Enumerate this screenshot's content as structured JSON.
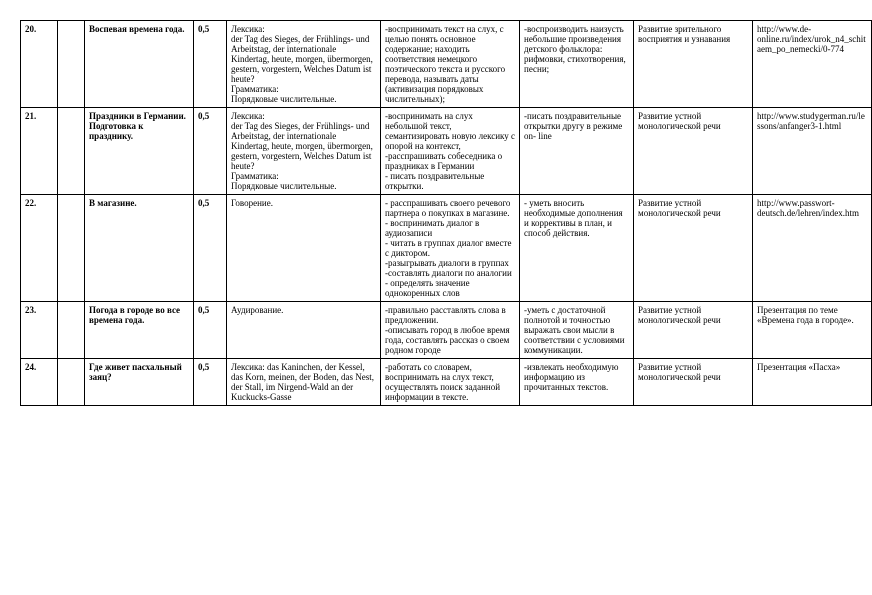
{
  "rows": [
    {
      "num": "20.",
      "topic": "Воспевая времена года.",
      "hours": "0,5",
      "lex": "Лексика:\nder Tag des Sieges, der Frühlings- und Arbeitstag, der internationale Kindertag, heute, morgen, übermorgen, gestern, vorgestern, Welches Datum ist heute?\nГрамматика:\nПорядковые числительные.",
      "act1": "-воспринимать текст на слух, с целью понять основное содержание; находить соответствия немецкого поэтического текста и русского перевода, называть даты (активизация порядковых числительных);",
      "act2": "-воспроизводить наизусть небольшие произведения детского фольклора: рифмовки, стихотворения, песни;",
      "dev": "Развитие  зрительного восприятия и узнавания",
      "link": "http://www.de-online.ru/index/urok_n4_schitaem_po_nemecki/0-774"
    },
    {
      "num": "21.",
      "topic": "Праздники в Германии. Подготовка  к празднику.",
      "hours": "0,5",
      "lex": "Лексика:\nder Tag des Sieges, der Frühlings- und Arbeitstag, der internationale Kindertag, heute, morgen, übermorgen, gestern, vorgestern, Welches Datum ist heute?\nГрамматика:\nПорядковые числительные.",
      "act1": "-воспринимать на слух небольшой текст, семантизировать новую лексику с опорой на контекст,  -расспрашивать собеседника о праздниках в Германии\n- писать поздравительные открытки.",
      "act2": "-писать поздравительные открытки другу в режиме on- line",
      "dev": "Развитие  устной монологической речи",
      "link": "http://www.studygerman.ru/lessons/anfanger3-1.html"
    },
    {
      "num": "22.",
      "topic": "В магазине.",
      "hours": "0,5",
      "lex": "Говорение.",
      "act1": "- расспрашивать своего речевого партнера о покупках в магазине.\n- воспринимать диалог в аудиозаписи\n- читать в группах  диалог вместе с диктором.\n-разыгрывать диалоги в группах\n-составлять диалоги по аналогии\n- определять значение однокоренных слов",
      "act2": "- уметь вносить необходимые дополнения  и коррективы в план, и способ действия.",
      "dev": "Развитие  устной монологической речи",
      "link": "http://www.passwort-deutsch.de/lehren/index.htm"
    },
    {
      "num": "23.",
      "topic": "Погода в городе во все времена года.",
      "hours": "0,5",
      "lex": "Аудирование.",
      "act1": "-правильно расставлять слова  в предложении.\n-описывать город в любое время года, составлять рассказ о своем родном городе",
      "act2": "-уметь с достаточной полнотой и точностью выражать свои мысли в соответствии с условиями коммуникации.",
      "dev": "Развитие  устной монологической речи",
      "link": "Презентация по теме «Времена года в городе»."
    },
    {
      "num": "24.",
      "topic": "Где живет пасхальный заяц?",
      "hours": "0,5",
      "lex": "Лексика: das Kaninchen, der Kessel, das Korn, meinen, der Boden, das Nest, der Stall, im Nirgend-Wald an der Kuckucks-Gasse",
      "act1": "-работать со словарем, воспринимать на слух текст, осуществлять поиск заданной информации в тексте.",
      "act2": "-извлекать необходимую информацию из прочитанных текстов.",
      "dev": "Развитие  устной монологической речи",
      "link": "Презентация «Пасха»"
    }
  ]
}
